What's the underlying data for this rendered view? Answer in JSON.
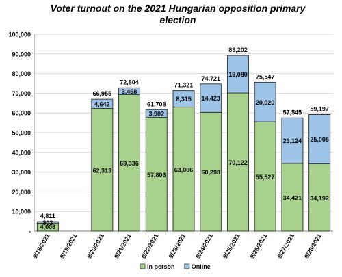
{
  "chart_data": {
    "type": "bar",
    "stacked": true,
    "title": "Voter turnout on the 2021 Hungarian opposition primary election",
    "title_lines": [
      "Voter turnout on the 2021 Hungarian opposition primary",
      "election"
    ],
    "categories": [
      "9/18/2021",
      "9/19/2021",
      "9/20/2021",
      "9/21/2021",
      "9/22/2021",
      "9/23/2021",
      "9/24/2021",
      "9/25/2021",
      "9/26/2021",
      "9/27/2021",
      "9/28/2021"
    ],
    "series": [
      {
        "name": "In person",
        "color": "#a9d18e",
        "values": [
          4008,
          null,
          62313,
          69336,
          57806,
          63006,
          60298,
          70122,
          55527,
          34421,
          34192
        ]
      },
      {
        "name": "Online",
        "color": "#9dc3e6",
        "values": [
          803,
          null,
          4642,
          3468,
          3902,
          8315,
          14423,
          19080,
          20020,
          23124,
          25005
        ]
      }
    ],
    "totals": [
      4811,
      null,
      66955,
      72804,
      61708,
      71321,
      74721,
      89202,
      75547,
      57545,
      59197
    ],
    "ylim": [
      0,
      100000
    ],
    "yticks": [
      0,
      10000,
      20000,
      30000,
      40000,
      50000,
      60000,
      70000,
      80000,
      90000,
      100000
    ],
    "ytick_labels": [
      "-",
      "10,000",
      "20,000",
      "30,000",
      "40,000",
      "50,000",
      "60,000",
      "70,000",
      "80,000",
      "90,000",
      "100,000"
    ],
    "grid": true,
    "legend_position": "bottom",
    "xlabel": "",
    "ylabel": ""
  }
}
